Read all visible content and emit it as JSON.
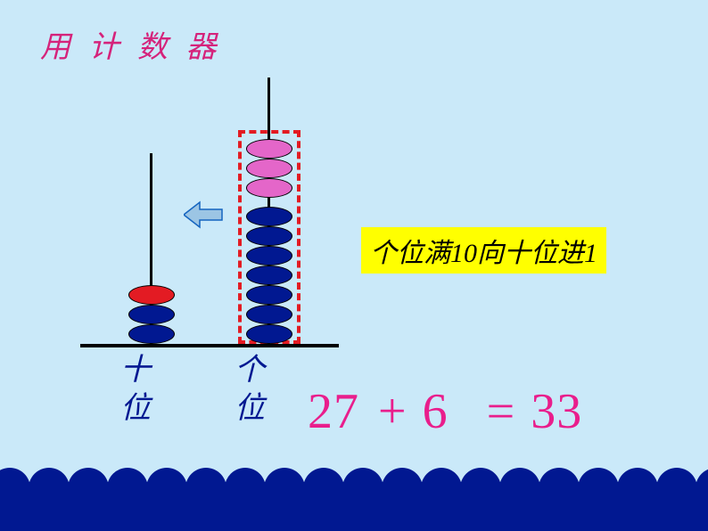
{
  "title": "用 计 数 器",
  "abacus": {
    "tens_label_top": "十",
    "tens_label_bottom": "位",
    "ones_label_top": "个",
    "ones_label_bottom": "位",
    "beads_tens": [
      {
        "color": "#e31b23"
      },
      {
        "color": "#011891"
      },
      {
        "color": "#011891"
      }
    ],
    "beads_ones": [
      {
        "color": "#e466c9"
      },
      {
        "color": "#e466c9"
      },
      {
        "color": "#e466c9"
      },
      {
        "color": "#011891"
      },
      {
        "color": "#011891"
      },
      {
        "color": "#011891"
      },
      {
        "color": "#011891"
      },
      {
        "color": "#011891"
      },
      {
        "color": "#011891"
      },
      {
        "color": "#011891"
      }
    ],
    "bead_height": 22,
    "bead_width": 52,
    "dashed_color": "#e31b23"
  },
  "arrow": {
    "fill": "#9cc5e4",
    "stroke": "#1565c0"
  },
  "carry_rule": {
    "text": "个位满10向十位进1",
    "bg": "#ffff00",
    "color": "#000000"
  },
  "equation": {
    "n1": "27",
    "op": "+",
    "n2": "6",
    "eq": "=",
    "res": "33",
    "color": "#e91e8c"
  },
  "colors": {
    "background": "#cae9f9",
    "navy": "#011891",
    "pink_text": "#d5237b"
  }
}
